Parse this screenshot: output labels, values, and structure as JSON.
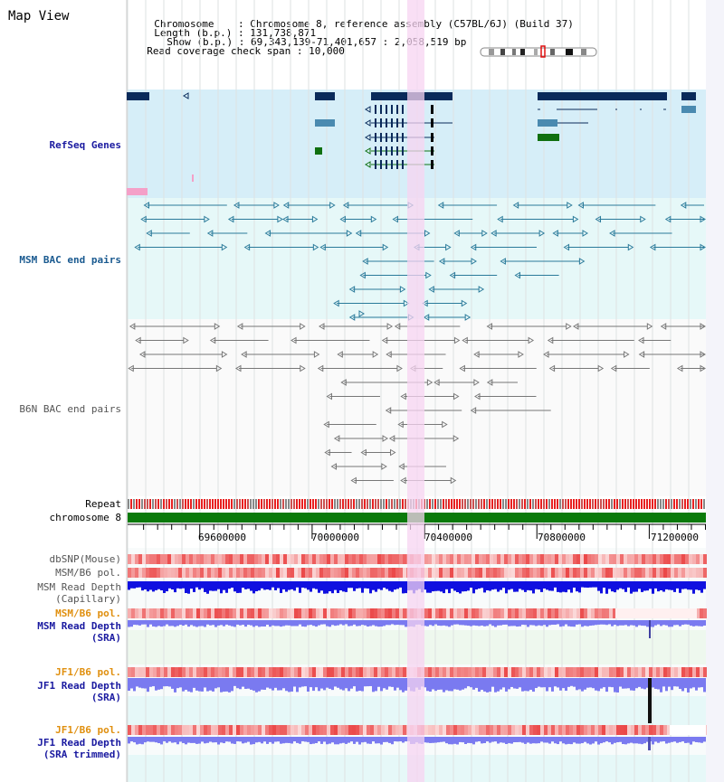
{
  "page": {
    "title": "Map View"
  },
  "header": {
    "chromosome_label": "Chromosome",
    "chromosome_value": "Chromosome 8, reference assembly (C57BL/6J) (Build 37)",
    "length_label": "Length (b.p.)",
    "length_value": "131,738,871",
    "show_label": "Show (b.p.)",
    "show_value": "69,343,139-71,401,657 : 2,058,519 bp",
    "coverage_label": "Read coverage check span",
    "coverage_value": "10,000"
  },
  "tracks": {
    "refseq": "RefSeq Genes",
    "msm_bac": "MSM BAC end pairs",
    "b6n_bac": "B6N BAC end pairs",
    "repeat": "Repeat",
    "chromosome": "chromosome 8",
    "dbsnp": "dbSNP(Mouse)",
    "msm_b6_pol": "MSM/B6 pol.",
    "msm_depth_cap_1": "MSM Read Depth",
    "msm_depth_cap_2": "(Capillary)",
    "msm_b6_pol_2": "MSM/B6 pol.",
    "msm_depth_sra_1": "MSM Read Depth",
    "msm_depth_sra_2": "(SRA)",
    "jf1_pol_1": "JF1/B6 pol.",
    "jf1_depth_sra_1": "JF1 Read Depth",
    "jf1_depth_sra_2": "(SRA)",
    "jf1_pol_2": "JF1/B6 pol.",
    "jf1_depth_trim_1": "JF1 Read Depth",
    "jf1_depth_trim_2": "(SRA trimmed)"
  },
  "axis": {
    "ticks": [
      "69600000",
      "70000000",
      "70400000",
      "70800000",
      "71200000"
    ],
    "tick_values": [
      69600000,
      70000000,
      70400000,
      70800000,
      71200000
    ],
    "range": [
      69343139,
      71401657
    ]
  },
  "colors": {
    "gene_dark": "#0a2a5a",
    "gene_mid": "#4a8ab0",
    "gene_green": "#107010",
    "bac_msm": "#2a7a9a",
    "bac_b6n": "#777777",
    "chromosome": "#0a7a0a",
    "highlight": "#f7d4f2",
    "refseq_bg": "#d6eef8",
    "msm_bac_bg": "#e6f8f8",
    "b6n_bac_bg": "#f4f4f4",
    "depth_blue": "#1010e0",
    "depth_violet": "#7a7af0",
    "pol_red": "#e83030"
  }
}
